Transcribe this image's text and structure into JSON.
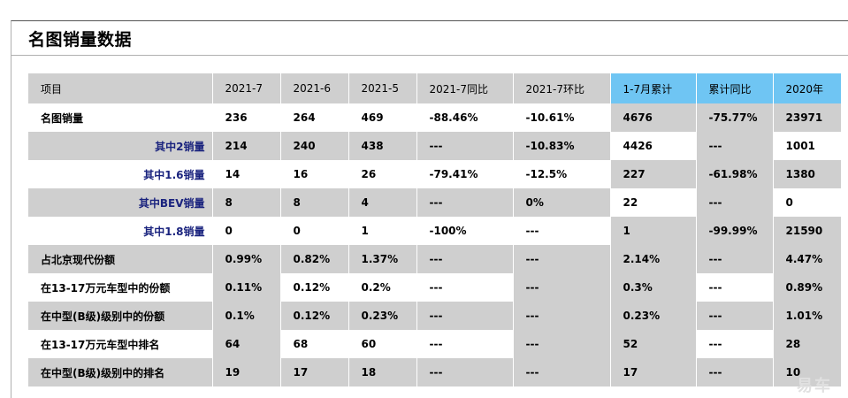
{
  "title": "名图销量数据",
  "watermark": "易车",
  "table": {
    "headers": [
      "项目",
      "2021-7",
      "2021-6",
      "2021-5",
      "2021-7同比",
      "2021-7环比",
      "1-7月累计",
      "累计同比",
      "2020年"
    ],
    "rows": [
      {
        "label": "名图销量",
        "values": [
          "236",
          "264",
          "469",
          "-88.46%",
          "-10.61%",
          "4676",
          "-75.77%",
          "23971"
        ]
      },
      {
        "label": "其中2销量",
        "values": [
          "214",
          "240",
          "438",
          "---",
          "-10.83%",
          "4426",
          "---",
          "1001"
        ]
      },
      {
        "label": "其中1.6销量",
        "values": [
          "14",
          "16",
          "26",
          "-79.41%",
          "-12.5%",
          "227",
          "-61.98%",
          "1380"
        ]
      },
      {
        "label": "其中BEV销量",
        "values": [
          "8",
          "8",
          "4",
          "---",
          "0%",
          "22",
          "---",
          "0"
        ]
      },
      {
        "label": "其中1.8销量",
        "values": [
          "0",
          "0",
          "1",
          "-100%",
          "---",
          "1",
          "-99.99%",
          "21590"
        ]
      },
      {
        "label": "占北京现代份额",
        "values": [
          "0.99%",
          "0.82%",
          "1.37%",
          "---",
          "---",
          "2.14%",
          "---",
          "4.47%"
        ]
      },
      {
        "label": "在13-17万元车型中的份额",
        "values": [
          "0.11%",
          "0.12%",
          "0.2%",
          "---",
          "---",
          "0.3%",
          "---",
          "0.89%"
        ]
      },
      {
        "label": "在中型(B级)级别中的份额",
        "values": [
          "0.1%",
          "0.12%",
          "0.23%",
          "---",
          "---",
          "0.23%",
          "---",
          "1.01%"
        ]
      },
      {
        "label": "在13-17万元车型中排名",
        "values": [
          "64",
          "68",
          "60",
          "---",
          "---",
          "52",
          "---",
          "28"
        ]
      },
      {
        "label": "在中型(B级)级别中的排名",
        "values": [
          "19",
          "17",
          "18",
          "---",
          "---",
          "17",
          "---",
          "10"
        ]
      }
    ]
  }
}
